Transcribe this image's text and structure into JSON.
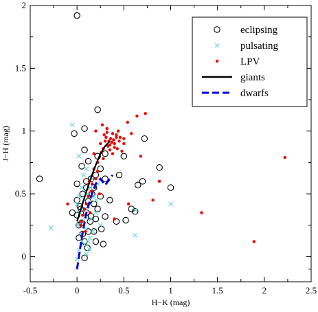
{
  "chart_data": {
    "type": "scatter",
    "title": "",
    "xlabel": "H−K (mag)",
    "ylabel": "J−H (mag)",
    "xlim": [
      -0.5,
      2.5
    ],
    "ylim": [
      -0.2,
      2.0
    ],
    "xticks": [
      "-0.5",
      "0",
      "0.5",
      "1",
      "1.5",
      "2",
      "2.5"
    ],
    "yticks": [
      "0",
      "0.5",
      "1",
      "1.5",
      "2"
    ],
    "grid": false,
    "legend_position": "top-right",
    "series": [
      {
        "name": "eclipsing",
        "marker": "open-circle",
        "color": "#000000",
        "points": [
          [
            0.0,
            1.92
          ],
          [
            -0.4,
            0.62
          ],
          [
            -0.03,
            0.98
          ],
          [
            0.22,
            1.17
          ],
          [
            0.08,
            1.02
          ],
          [
            0.12,
            0.76
          ],
          [
            0.45,
            0.65
          ],
          [
            0.72,
            0.94
          ],
          [
            0.88,
            0.71
          ],
          [
            1.0,
            0.55
          ],
          [
            0.65,
            0.57
          ],
          [
            0.7,
            0.6
          ],
          [
            0.58,
            0.38
          ],
          [
            0.62,
            0.36
          ],
          [
            0.52,
            0.29
          ],
          [
            0.42,
            0.28
          ],
          [
            0.3,
            0.32
          ],
          [
            0.28,
            0.1
          ],
          [
            0.08,
            0.12
          ],
          [
            0.08,
            -0.01
          ],
          [
            0.06,
            0.5
          ],
          [
            0.1,
            0.55
          ],
          [
            0.2,
            0.65
          ],
          [
            0.25,
            0.7
          ],
          [
            0.3,
            0.62
          ],
          [
            0.15,
            0.32
          ],
          [
            0.18,
            0.42
          ],
          [
            0.12,
            0.2
          ],
          [
            0.22,
            0.38
          ],
          [
            0.05,
            0.72
          ],
          [
            0.15,
            0.62
          ],
          [
            0.0,
            0.58
          ],
          [
            0.1,
            0.6
          ],
          [
            0.18,
            0.55
          ],
          [
            0.25,
            0.48
          ],
          [
            0.05,
            0.27
          ],
          [
            0.0,
            0.33
          ],
          [
            0.1,
            0.35
          ],
          [
            0.2,
            0.3
          ],
          [
            0.12,
            0.44
          ],
          [
            -0.05,
            0.35
          ],
          [
            0.02,
            0.15
          ],
          [
            0.18,
            0.2
          ],
          [
            0.26,
            0.22
          ],
          [
            0.35,
            0.45
          ],
          [
            0.22,
            0.8
          ],
          [
            0.08,
            0.85
          ],
          [
            0.0,
            0.45
          ],
          [
            0.04,
            0.38
          ],
          [
            0.14,
            0.28
          ],
          [
            0.3,
            0.82
          ],
          [
            0.5,
            0.8
          ],
          [
            0.02,
            0.25
          ],
          [
            0.06,
            0.18
          ],
          [
            0.16,
            0.5
          ],
          [
            0.2,
            0.12
          ],
          [
            0.11,
            0.07
          ],
          [
            0.03,
            0.4
          ]
        ]
      },
      {
        "name": "pulsating",
        "marker": "x",
        "color": "#5fd3d3",
        "points": [
          [
            -0.28,
            0.23
          ],
          [
            -0.05,
            1.05
          ],
          [
            0.62,
            0.17
          ],
          [
            1.0,
            0.42
          ],
          [
            0.62,
            0.37
          ],
          [
            0.0,
            -0.02
          ],
          [
            0.02,
            0.8
          ],
          [
            0.1,
            0.7
          ],
          [
            0.16,
            0.62
          ],
          [
            0.22,
            0.58
          ],
          [
            0.05,
            0.55
          ],
          [
            0.08,
            0.45
          ],
          [
            0.12,
            0.4
          ],
          [
            0.03,
            0.35
          ],
          [
            0.06,
            0.28
          ],
          [
            0.1,
            0.22
          ],
          [
            0.04,
            0.18
          ],
          [
            0.08,
            0.1
          ],
          [
            0.13,
            0.06
          ],
          [
            0.02,
            0.05
          ],
          [
            0.15,
            0.3
          ],
          [
            0.2,
            0.35
          ],
          [
            0.11,
            0.5
          ],
          [
            0.0,
            0.42
          ],
          [
            0.18,
            0.48
          ],
          [
            0.07,
            0.65
          ],
          [
            0.14,
            0.15
          ],
          [
            0.09,
            0.32
          ],
          [
            0.25,
            0.25
          ],
          [
            0.01,
            0.25
          ],
          [
            0.06,
            0.38
          ],
          [
            0.12,
            0.12
          ],
          [
            0.17,
            0.2
          ],
          [
            0.03,
            0.48
          ],
          [
            0.1,
            0.02
          ],
          [
            0.14,
            0.55
          ],
          [
            0.2,
            0.45
          ],
          [
            0.05,
            0.12
          ]
        ]
      },
      {
        "name": "LPV",
        "marker": "dot",
        "color": "#ee0000",
        "points": [
          [
            2.22,
            0.79
          ],
          [
            1.33,
            0.35
          ],
          [
            1.89,
            0.12
          ],
          [
            0.88,
            0.6
          ],
          [
            0.81,
            0.45
          ],
          [
            0.55,
            0.42
          ],
          [
            0.4,
            0.3
          ],
          [
            0.73,
            1.14
          ],
          [
            0.64,
            1.12
          ],
          [
            0.54,
            1.07
          ],
          [
            0.58,
            0.98
          ],
          [
            0.68,
            0.8
          ],
          [
            0.2,
            1.0
          ],
          [
            0.27,
            1.05
          ],
          [
            0.32,
            1.02
          ],
          [
            0.38,
            0.98
          ],
          [
            0.42,
            0.95
          ],
          [
            0.36,
            0.94
          ],
          [
            0.3,
            0.92
          ],
          [
            0.33,
            0.88
          ],
          [
            0.4,
            0.9
          ],
          [
            0.45,
            0.92
          ],
          [
            0.5,
            0.9
          ],
          [
            0.35,
            0.85
          ],
          [
            0.28,
            0.86
          ],
          [
            0.25,
            0.9
          ],
          [
            0.43,
            0.86
          ],
          [
            0.48,
            0.84
          ],
          [
            0.38,
            0.82
          ],
          [
            0.31,
            0.95
          ],
          [
            0.37,
            0.91
          ],
          [
            0.4,
            0.87
          ],
          [
            0.34,
            0.92
          ],
          [
            0.29,
            0.97
          ],
          [
            0.44,
            1.0
          ],
          [
            0.39,
            0.93
          ],
          [
            0.35,
            0.89
          ],
          [
            0.46,
            0.95
          ],
          [
            0.26,
            0.83
          ],
          [
            0.22,
            0.75
          ],
          [
            0.18,
            0.7
          ],
          [
            0.2,
            0.62
          ],
          [
            0.16,
            0.58
          ],
          [
            0.15,
            0.52
          ],
          [
            0.12,
            0.48
          ],
          [
            0.1,
            0.42
          ],
          [
            0.08,
            0.38
          ],
          [
            0.06,
            0.33
          ],
          [
            0.05,
            0.28
          ],
          [
            0.04,
            0.25
          ],
          [
            -0.1,
            0.42
          ],
          [
            0.14,
            0.35
          ],
          [
            0.09,
            0.2
          ],
          [
            0.24,
            0.5
          ],
          [
            0.18,
            0.82
          ],
          [
            0.22,
            0.68
          ],
          [
            0.28,
            0.78
          ],
          [
            0.42,
            0.97
          ],
          [
            0.5,
            0.94
          ],
          [
            0.32,
            0.99
          ],
          [
            0.19,
            0.55
          ],
          [
            0.13,
            0.6
          ]
        ]
      },
      {
        "name": "giants",
        "marker": "line-solid",
        "color": "#000000",
        "points": [
          [
            0.0,
            0.28
          ],
          [
            0.05,
            0.4
          ],
          [
            0.1,
            0.52
          ],
          [
            0.15,
            0.63
          ],
          [
            0.2,
            0.73
          ],
          [
            0.25,
            0.82
          ],
          [
            0.3,
            0.88
          ],
          [
            0.35,
            0.92
          ]
        ]
      },
      {
        "name": "dwarfs",
        "marker": "line-dash",
        "color": "#0000dd",
        "points": [
          [
            0.0,
            -0.1
          ],
          [
            0.05,
            0.15
          ],
          [
            0.1,
            0.35
          ],
          [
            0.15,
            0.48
          ],
          [
            0.2,
            0.58
          ],
          [
            0.25,
            0.62
          ],
          [
            0.3,
            0.57
          ],
          [
            0.38,
            0.65
          ]
        ]
      }
    ]
  }
}
